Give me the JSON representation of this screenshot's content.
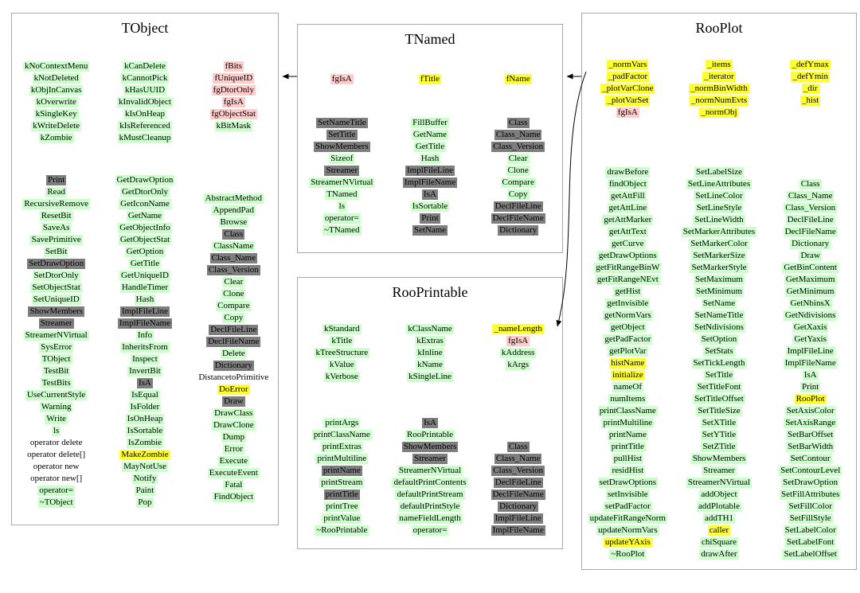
{
  "colors": {
    "green": "#ccffcc",
    "yellow": "#ffff33",
    "pink": "#ffcccc",
    "dark": "#7e7e7e"
  },
  "tobject": {
    "title": "TObject",
    "col1_enums": [
      {
        "t": "kNoContextMenu",
        "c": "g"
      },
      {
        "t": "kNotDeleted",
        "c": "g"
      },
      {
        "t": "kObjInCanvas",
        "c": "g"
      },
      {
        "t": "kOverwrite",
        "c": "g"
      },
      {
        "t": "kSingleKey",
        "c": "g"
      },
      {
        "t": "kWriteDelete",
        "c": "g"
      },
      {
        "t": "kZombie",
        "c": "g"
      }
    ],
    "col1_methods": [
      {
        "t": "Print",
        "c": "d"
      },
      {
        "t": "Read",
        "c": "g"
      },
      {
        "t": "RecursiveRemove",
        "c": "g"
      },
      {
        "t": "ResetBit",
        "c": "g"
      },
      {
        "t": "SaveAs",
        "c": "g"
      },
      {
        "t": "SavePrimitive",
        "c": "g"
      },
      {
        "t": "SetBit",
        "c": "g"
      },
      {
        "t": "SetDrawOption",
        "c": "d"
      },
      {
        "t": "SetDtorOnly",
        "c": "g"
      },
      {
        "t": "SetObjectStat",
        "c": "g"
      },
      {
        "t": "SetUniqueID",
        "c": "g"
      },
      {
        "t": "ShowMembers",
        "c": "d"
      },
      {
        "t": "Streamer",
        "c": "d"
      },
      {
        "t": "StreamerNVirtual",
        "c": "g"
      },
      {
        "t": "SysError",
        "c": "g"
      },
      {
        "t": "TObject",
        "c": "g"
      },
      {
        "t": "TestBit",
        "c": "g"
      },
      {
        "t": "TestBits",
        "c": "g"
      },
      {
        "t": "UseCurrentStyle",
        "c": "g"
      },
      {
        "t": "Warning",
        "c": "g"
      },
      {
        "t": "Write",
        "c": "g"
      },
      {
        "t": "ls",
        "c": "g"
      },
      {
        "t": "operator delete",
        "c": "w"
      },
      {
        "t": "operator delete[]",
        "c": "w"
      },
      {
        "t": "operator new",
        "c": "w"
      },
      {
        "t": "operator new[]",
        "c": "w"
      },
      {
        "t": "operator=",
        "c": "g"
      },
      {
        "t": "~TObject",
        "c": "g"
      }
    ],
    "col2_enums": [
      {
        "t": "kCanDelete",
        "c": "g"
      },
      {
        "t": "kCannotPick",
        "c": "g"
      },
      {
        "t": "kHasUUID",
        "c": "g"
      },
      {
        "t": "kInvalidObject",
        "c": "g"
      },
      {
        "t": "kIsOnHeap",
        "c": "g"
      },
      {
        "t": "kIsReferenced",
        "c": "g"
      },
      {
        "t": "kMustCleanup",
        "c": "g"
      }
    ],
    "col2_methods": [
      {
        "t": "GetDrawOption",
        "c": "g"
      },
      {
        "t": "GetDtorOnly",
        "c": "g"
      },
      {
        "t": "GetIconName",
        "c": "g"
      },
      {
        "t": "GetName",
        "c": "g"
      },
      {
        "t": "GetObjectInfo",
        "c": "g"
      },
      {
        "t": "GetObjectStat",
        "c": "g"
      },
      {
        "t": "GetOption",
        "c": "g"
      },
      {
        "t": "GetTitle",
        "c": "g"
      },
      {
        "t": "GetUniqueID",
        "c": "g"
      },
      {
        "t": "HandleTimer",
        "c": "g"
      },
      {
        "t": "Hash",
        "c": "g"
      },
      {
        "t": "ImplFileLine",
        "c": "d"
      },
      {
        "t": "ImplFileName",
        "c": "d"
      },
      {
        "t": "Info",
        "c": "g"
      },
      {
        "t": "InheritsFrom",
        "c": "g"
      },
      {
        "t": "Inspect",
        "c": "g"
      },
      {
        "t": "InvertBit",
        "c": "g"
      },
      {
        "t": "IsA",
        "c": "d"
      },
      {
        "t": "IsEqual",
        "c": "g"
      },
      {
        "t": "IsFolder",
        "c": "g"
      },
      {
        "t": "IsOnHeap",
        "c": "g"
      },
      {
        "t": "IsSortable",
        "c": "g"
      },
      {
        "t": "IsZombie",
        "c": "g"
      },
      {
        "t": "MakeZombie",
        "c": "y"
      },
      {
        "t": "MayNotUse",
        "c": "g"
      },
      {
        "t": "Notify",
        "c": "g"
      },
      {
        "t": "Paint",
        "c": "g"
      },
      {
        "t": "Pop",
        "c": "g"
      }
    ],
    "col3_fields": [
      {
        "t": "fBits",
        "c": "p"
      },
      {
        "t": "fUniqueID",
        "c": "p"
      },
      {
        "t": "fgDtorOnly",
        "c": "p"
      },
      {
        "t": "fgIsA",
        "c": "p"
      },
      {
        "t": "fgObjectStat",
        "c": "p"
      },
      {
        "t": "kBitMask",
        "c": "g"
      }
    ],
    "col3_methods": [
      {
        "t": "AbstractMethod",
        "c": "g"
      },
      {
        "t": "AppendPad",
        "c": "g"
      },
      {
        "t": "Browse",
        "c": "g"
      },
      {
        "t": "Class",
        "c": "d"
      },
      {
        "t": "ClassName",
        "c": "g"
      },
      {
        "t": "Class_Name",
        "c": "d"
      },
      {
        "t": "Class_Version",
        "c": "d"
      },
      {
        "t": "Clear",
        "c": "g"
      },
      {
        "t": "Clone",
        "c": "g"
      },
      {
        "t": "Compare",
        "c": "g"
      },
      {
        "t": "Copy",
        "c": "g"
      },
      {
        "t": "DeclFileLine",
        "c": "d"
      },
      {
        "t": "DeclFileName",
        "c": "d"
      },
      {
        "t": "Delete",
        "c": "g"
      },
      {
        "t": "Dictionary",
        "c": "d"
      },
      {
        "t": "DistancetoPrimitive",
        "c": "w"
      },
      {
        "t": "DoError",
        "c": "y"
      },
      {
        "t": "Draw",
        "c": "d"
      },
      {
        "t": "DrawClass",
        "c": "g"
      },
      {
        "t": "DrawClone",
        "c": "g"
      },
      {
        "t": "Dump",
        "c": "g"
      },
      {
        "t": "Error",
        "c": "g"
      },
      {
        "t": "Execute",
        "c": "g"
      },
      {
        "t": "ExecuteEvent",
        "c": "g"
      },
      {
        "t": "Fatal",
        "c": "g"
      },
      {
        "t": "FindObject",
        "c": "g"
      }
    ]
  },
  "tnamed": {
    "title": "TNamed",
    "col1_fields": [
      {
        "t": "fgIsA",
        "c": "p"
      }
    ],
    "col2_fields": [
      {
        "t": "fTitle",
        "c": "y"
      }
    ],
    "col3_fields": [
      {
        "t": "fName",
        "c": "y"
      }
    ],
    "col1_methods": [
      {
        "t": "SetNameTitle",
        "c": "d"
      },
      {
        "t": "SetTitle",
        "c": "d"
      },
      {
        "t": "ShowMembers",
        "c": "d"
      },
      {
        "t": "Sizeof",
        "c": "g"
      },
      {
        "t": "Streamer",
        "c": "d"
      },
      {
        "t": "StreamerNVirtual",
        "c": "g"
      },
      {
        "t": "TNamed",
        "c": "g"
      },
      {
        "t": "ls",
        "c": "g"
      },
      {
        "t": "operator=",
        "c": "g"
      },
      {
        "t": "~TNamed",
        "c": "g"
      }
    ],
    "col2_methods": [
      {
        "t": "FillBuffer",
        "c": "g"
      },
      {
        "t": "GetName",
        "c": "g"
      },
      {
        "t": "GetTitle",
        "c": "g"
      },
      {
        "t": "Hash",
        "c": "g"
      },
      {
        "t": "ImplFileLine",
        "c": "d"
      },
      {
        "t": "ImplFileName",
        "c": "d"
      },
      {
        "t": "IsA",
        "c": "d"
      },
      {
        "t": "IsSortable",
        "c": "g"
      },
      {
        "t": "Print",
        "c": "d"
      },
      {
        "t": "SetName",
        "c": "d"
      }
    ],
    "col3_methods": [
      {
        "t": "Class",
        "c": "d"
      },
      {
        "t": "Class_Name",
        "c": "d"
      },
      {
        "t": "Class_Version",
        "c": "d"
      },
      {
        "t": "Clear",
        "c": "g"
      },
      {
        "t": "Clone",
        "c": "g"
      },
      {
        "t": "Compare",
        "c": "g"
      },
      {
        "t": "Copy",
        "c": "g"
      },
      {
        "t": "DeclFileLine",
        "c": "d"
      },
      {
        "t": "DeclFileName",
        "c": "d"
      },
      {
        "t": "Dictionary",
        "c": "d"
      }
    ]
  },
  "rooprintable": {
    "title": "RooPrintable",
    "col1_enums": [
      {
        "t": "kStandard",
        "c": "g"
      },
      {
        "t": "kTitle",
        "c": "g"
      },
      {
        "t": "kTreeStructure",
        "c": "g"
      },
      {
        "t": "kValue",
        "c": "g"
      },
      {
        "t": "kVerbose",
        "c": "g"
      }
    ],
    "col2_enums": [
      {
        "t": "kClassName",
        "c": "g"
      },
      {
        "t": "kExtras",
        "c": "g"
      },
      {
        "t": "kInline",
        "c": "g"
      },
      {
        "t": "kName",
        "c": "g"
      },
      {
        "t": "kSingleLine",
        "c": "g"
      }
    ],
    "col3_fields": [
      {
        "t": "_nameLength",
        "c": "y"
      },
      {
        "t": "fgIsA",
        "c": "p"
      },
      {
        "t": "kAddress",
        "c": "g"
      },
      {
        "t": "kArgs",
        "c": "g"
      }
    ],
    "col1_methods": [
      {
        "t": "printArgs",
        "c": "g"
      },
      {
        "t": "printClassName",
        "c": "g"
      },
      {
        "t": "printExtras",
        "c": "g"
      },
      {
        "t": "printMultiline",
        "c": "g"
      },
      {
        "t": "printName",
        "c": "d"
      },
      {
        "t": "printStream",
        "c": "g"
      },
      {
        "t": "printTitle",
        "c": "d"
      },
      {
        "t": "printTree",
        "c": "g"
      },
      {
        "t": "printValue",
        "c": "g"
      },
      {
        "t": "~RooPrintable",
        "c": "g"
      }
    ],
    "col2_methods": [
      {
        "t": "IsA",
        "c": "d"
      },
      {
        "t": "RooPrintable",
        "c": "g"
      },
      {
        "t": "ShowMembers",
        "c": "d"
      },
      {
        "t": "Streamer",
        "c": "d"
      },
      {
        "t": "StreamerNVirtual",
        "c": "g"
      },
      {
        "t": "defaultPrintContents",
        "c": "g"
      },
      {
        "t": "defaultPrintStream",
        "c": "g"
      },
      {
        "t": "defaultPrintStyle",
        "c": "g"
      },
      {
        "t": "nameFieldLength",
        "c": "g"
      },
      {
        "t": "operator=",
        "c": "g"
      }
    ],
    "col3_methods": [
      {
        "t": "Class",
        "c": "d"
      },
      {
        "t": "Class_Name",
        "c": "d"
      },
      {
        "t": "Class_Version",
        "c": "d"
      },
      {
        "t": "DeclFileLine",
        "c": "d"
      },
      {
        "t": "DeclFileName",
        "c": "d"
      },
      {
        "t": "Dictionary",
        "c": "d"
      },
      {
        "t": "ImplFileLine",
        "c": "d"
      },
      {
        "t": "ImplFileName",
        "c": "d"
      }
    ]
  },
  "rooplot": {
    "title": "RooPlot",
    "col1_fields": [
      {
        "t": "_normVars",
        "c": "y"
      },
      {
        "t": "_padFactor",
        "c": "y"
      },
      {
        "t": "_plotVarClone",
        "c": "y"
      },
      {
        "t": "_plotVarSet",
        "c": "y"
      },
      {
        "t": "fgIsA",
        "c": "p"
      }
    ],
    "col2_fields": [
      {
        "t": "_items",
        "c": "y"
      },
      {
        "t": "_iterator",
        "c": "y"
      },
      {
        "t": "_normBinWidth",
        "c": "y"
      },
      {
        "t": "_normNumEvts",
        "c": "y"
      },
      {
        "t": "_normObj",
        "c": "y"
      }
    ],
    "col3_fields": [
      {
        "t": "_defYmax",
        "c": "y"
      },
      {
        "t": "_defYmin",
        "c": "y"
      },
      {
        "t": "_dir",
        "c": "y"
      },
      {
        "t": "_hist",
        "c": "y"
      }
    ],
    "col1_methods": [
      {
        "t": "drawBefore",
        "c": "g"
      },
      {
        "t": "findObject",
        "c": "g"
      },
      {
        "t": "getAttFill",
        "c": "g"
      },
      {
        "t": "getAttLine",
        "c": "g"
      },
      {
        "t": "getAttMarker",
        "c": "g"
      },
      {
        "t": "getAttText",
        "c": "g"
      },
      {
        "t": "getCurve",
        "c": "g"
      },
      {
        "t": "getDrawOptions",
        "c": "g"
      },
      {
        "t": "getFitRangeBinW",
        "c": "g"
      },
      {
        "t": "getFitRangeNEvt",
        "c": "g"
      },
      {
        "t": "getHist",
        "c": "g"
      },
      {
        "t": "getInvisible",
        "c": "g"
      },
      {
        "t": "getNormVars",
        "c": "g"
      },
      {
        "t": "getObject",
        "c": "g"
      },
      {
        "t": "getPadFactor",
        "c": "g"
      },
      {
        "t": "getPlotVar",
        "c": "g"
      },
      {
        "t": "histName",
        "c": "y"
      },
      {
        "t": "initialize",
        "c": "y"
      },
      {
        "t": "nameOf",
        "c": "g"
      },
      {
        "t": "numItems",
        "c": "g"
      },
      {
        "t": "printClassName",
        "c": "g"
      },
      {
        "t": "printMultiline",
        "c": "g"
      },
      {
        "t": "printName",
        "c": "g"
      },
      {
        "t": "printTitle",
        "c": "g"
      },
      {
        "t": "pullHist",
        "c": "g"
      },
      {
        "t": "residHist",
        "c": "g"
      },
      {
        "t": "setDrawOptions",
        "c": "g"
      },
      {
        "t": "setInvisible",
        "c": "g"
      },
      {
        "t": "setPadFactor",
        "c": "g"
      },
      {
        "t": "updateFitRangeNorm",
        "c": "g"
      },
      {
        "t": "updateNormVars",
        "c": "g"
      },
      {
        "t": "updateYAxis",
        "c": "y"
      },
      {
        "t": "~RooPlot",
        "c": "g"
      }
    ],
    "col2_methods": [
      {
        "t": "SetLabelSize",
        "c": "g"
      },
      {
        "t": "SetLineAttributes",
        "c": "g"
      },
      {
        "t": "SetLineColor",
        "c": "g"
      },
      {
        "t": "SetLineStyle",
        "c": "g"
      },
      {
        "t": "SetLineWidth",
        "c": "g"
      },
      {
        "t": "SetMarkerAttributes",
        "c": "g"
      },
      {
        "t": "SetMarkerColor",
        "c": "g"
      },
      {
        "t": "SetMarkerSize",
        "c": "g"
      },
      {
        "t": "SetMarkerStyle",
        "c": "g"
      },
      {
        "t": "SetMaximum",
        "c": "g"
      },
      {
        "t": "SetMinimum",
        "c": "g"
      },
      {
        "t": "SetName",
        "c": "g"
      },
      {
        "t": "SetNameTitle",
        "c": "g"
      },
      {
        "t": "SetNdivisions",
        "c": "g"
      },
      {
        "t": "SetOption",
        "c": "g"
      },
      {
        "t": "SetStats",
        "c": "g"
      },
      {
        "t": "SetTickLength",
        "c": "g"
      },
      {
        "t": "SetTitle",
        "c": "g"
      },
      {
        "t": "SetTitleFont",
        "c": "g"
      },
      {
        "t": "SetTitleOffset",
        "c": "g"
      },
      {
        "t": "SetTitleSize",
        "c": "g"
      },
      {
        "t": "SetXTitle",
        "c": "g"
      },
      {
        "t": "SetYTitle",
        "c": "g"
      },
      {
        "t": "SetZTitle",
        "c": "g"
      },
      {
        "t": "ShowMembers",
        "c": "g"
      },
      {
        "t": "Streamer",
        "c": "g"
      },
      {
        "t": "StreamerNVirtual",
        "c": "g"
      },
      {
        "t": "addObject",
        "c": "g"
      },
      {
        "t": "addPlotable",
        "c": "g"
      },
      {
        "t": "addTH1",
        "c": "g"
      },
      {
        "t": "caller",
        "c": "y"
      },
      {
        "t": "chiSquare",
        "c": "g"
      },
      {
        "t": "drawAfter",
        "c": "g"
      }
    ],
    "col3_methods": [
      {
        "t": "Class",
        "c": "g"
      },
      {
        "t": "Class_Name",
        "c": "g"
      },
      {
        "t": "Class_Version",
        "c": "g"
      },
      {
        "t": "DeclFileLine",
        "c": "g"
      },
      {
        "t": "DeclFileName",
        "c": "g"
      },
      {
        "t": "Dictionary",
        "c": "g"
      },
      {
        "t": "Draw",
        "c": "g"
      },
      {
        "t": "GetBinContent",
        "c": "g"
      },
      {
        "t": "GetMaximum",
        "c": "g"
      },
      {
        "t": "GetMinimum",
        "c": "g"
      },
      {
        "t": "GetNbinsX",
        "c": "g"
      },
      {
        "t": "GetNdivisions",
        "c": "g"
      },
      {
        "t": "GetXaxis",
        "c": "g"
      },
      {
        "t": "GetYaxis",
        "c": "g"
      },
      {
        "t": "ImplFileLine",
        "c": "g"
      },
      {
        "t": "ImplFileName",
        "c": "g"
      },
      {
        "t": "IsA",
        "c": "g"
      },
      {
        "t": "Print",
        "c": "g"
      },
      {
        "t": "RooPlot",
        "c": "y"
      },
      {
        "t": "SetAxisColor",
        "c": "g"
      },
      {
        "t": "SetAxisRange",
        "c": "g"
      },
      {
        "t": "SetBarOffset",
        "c": "g"
      },
      {
        "t": "SetBarWidth",
        "c": "g"
      },
      {
        "t": "SetContour",
        "c": "g"
      },
      {
        "t": "SetContourLevel",
        "c": "g"
      },
      {
        "t": "SetDrawOption",
        "c": "g"
      },
      {
        "t": "SetFillAttributes",
        "c": "g"
      },
      {
        "t": "SetFillColor",
        "c": "g"
      },
      {
        "t": "SetFillStyle",
        "c": "g"
      },
      {
        "t": "SetLabelColor",
        "c": "g"
      },
      {
        "t": "SetLabelFont",
        "c": "g"
      },
      {
        "t": "SetLabelOffset",
        "c": "g"
      }
    ]
  }
}
